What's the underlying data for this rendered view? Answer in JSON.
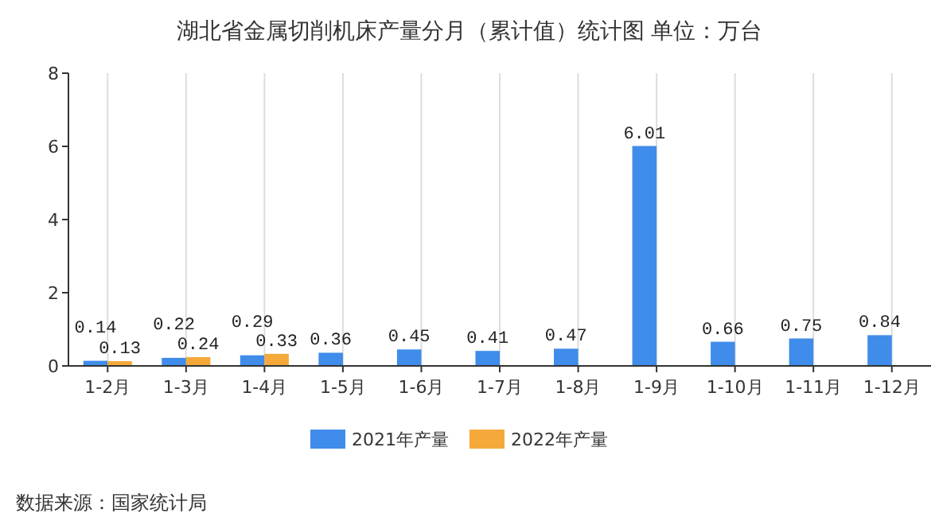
{
  "chart_data": {
    "type": "bar",
    "title": "湖北省金属切削机床产量分月（累计值）统计图 单位：万台",
    "categories": [
      "1-2月",
      "1-3月",
      "1-4月",
      "1-5月",
      "1-6月",
      "1-7月",
      "1-8月",
      "1-9月",
      "1-10月",
      "1-11月",
      "1-12月"
    ],
    "series": [
      {
        "name": "2021年产量",
        "color": "#3f8cea",
        "values": [
          0.14,
          0.22,
          0.29,
          0.36,
          0.45,
          0.41,
          0.47,
          6.01,
          0.66,
          0.75,
          0.84
        ]
      },
      {
        "name": "2022年产量",
        "color": "#f5a93a",
        "values": [
          0.13,
          0.24,
          0.33,
          null,
          null,
          null,
          null,
          null,
          null,
          null,
          null
        ]
      }
    ],
    "ylim": [
      0,
      8
    ],
    "yticks": [
      0,
      2,
      4,
      6,
      8
    ],
    "grid": "x",
    "legend": "bottom",
    "data_labels": true,
    "annotations": [
      "数据来源：国家统计局"
    ]
  }
}
